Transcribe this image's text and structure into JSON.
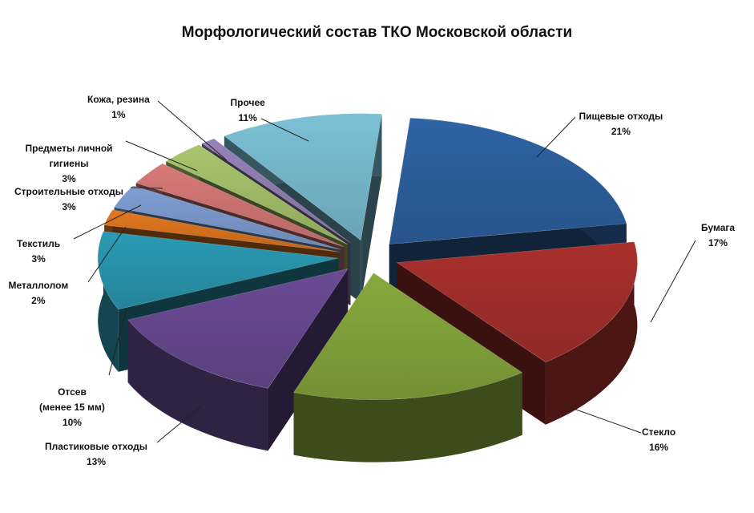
{
  "chart_data": {
    "type": "pie",
    "title": "Морфологический состав ТКО Московской области",
    "slices": [
      {
        "label": "Пищевые отходы",
        "value": 21,
        "value_label": "21%",
        "color": "#2e63a4"
      },
      {
        "label": "Бумага",
        "value": 17,
        "value_label": "17%",
        "color": "#a9302d"
      },
      {
        "label": "Стекло",
        "value": 16,
        "value_label": "16%",
        "color": "#87a93d"
      },
      {
        "label": "Пластиковые отходы",
        "value": 13,
        "value_label": "13%",
        "color": "#6a4b94"
      },
      {
        "label": "Отсев\n(менее 15 мм)",
        "value": 10,
        "value_label": "10%",
        "color": "#2a9bb4"
      },
      {
        "label": "Металлолом",
        "value": 2,
        "value_label": "2%",
        "color": "#e2781f"
      },
      {
        "label": "Текстиль",
        "value": 3,
        "value_label": "3%",
        "color": "#7f9fd4"
      },
      {
        "label": "Строительные отходы",
        "value": 3,
        "value_label": "3%",
        "color": "#d77a78"
      },
      {
        "label": "Предметы личной\nгигиены",
        "value": 3,
        "value_label": "3%",
        "color": "#a8c66c"
      },
      {
        "label": "Кожа, резина",
        "value": 1,
        "value_label": "1%",
        "color": "#9782b8"
      },
      {
        "label": "Прочее",
        "value": 11,
        "value_label": "11%",
        "color": "#7bc1d5"
      }
    ]
  }
}
